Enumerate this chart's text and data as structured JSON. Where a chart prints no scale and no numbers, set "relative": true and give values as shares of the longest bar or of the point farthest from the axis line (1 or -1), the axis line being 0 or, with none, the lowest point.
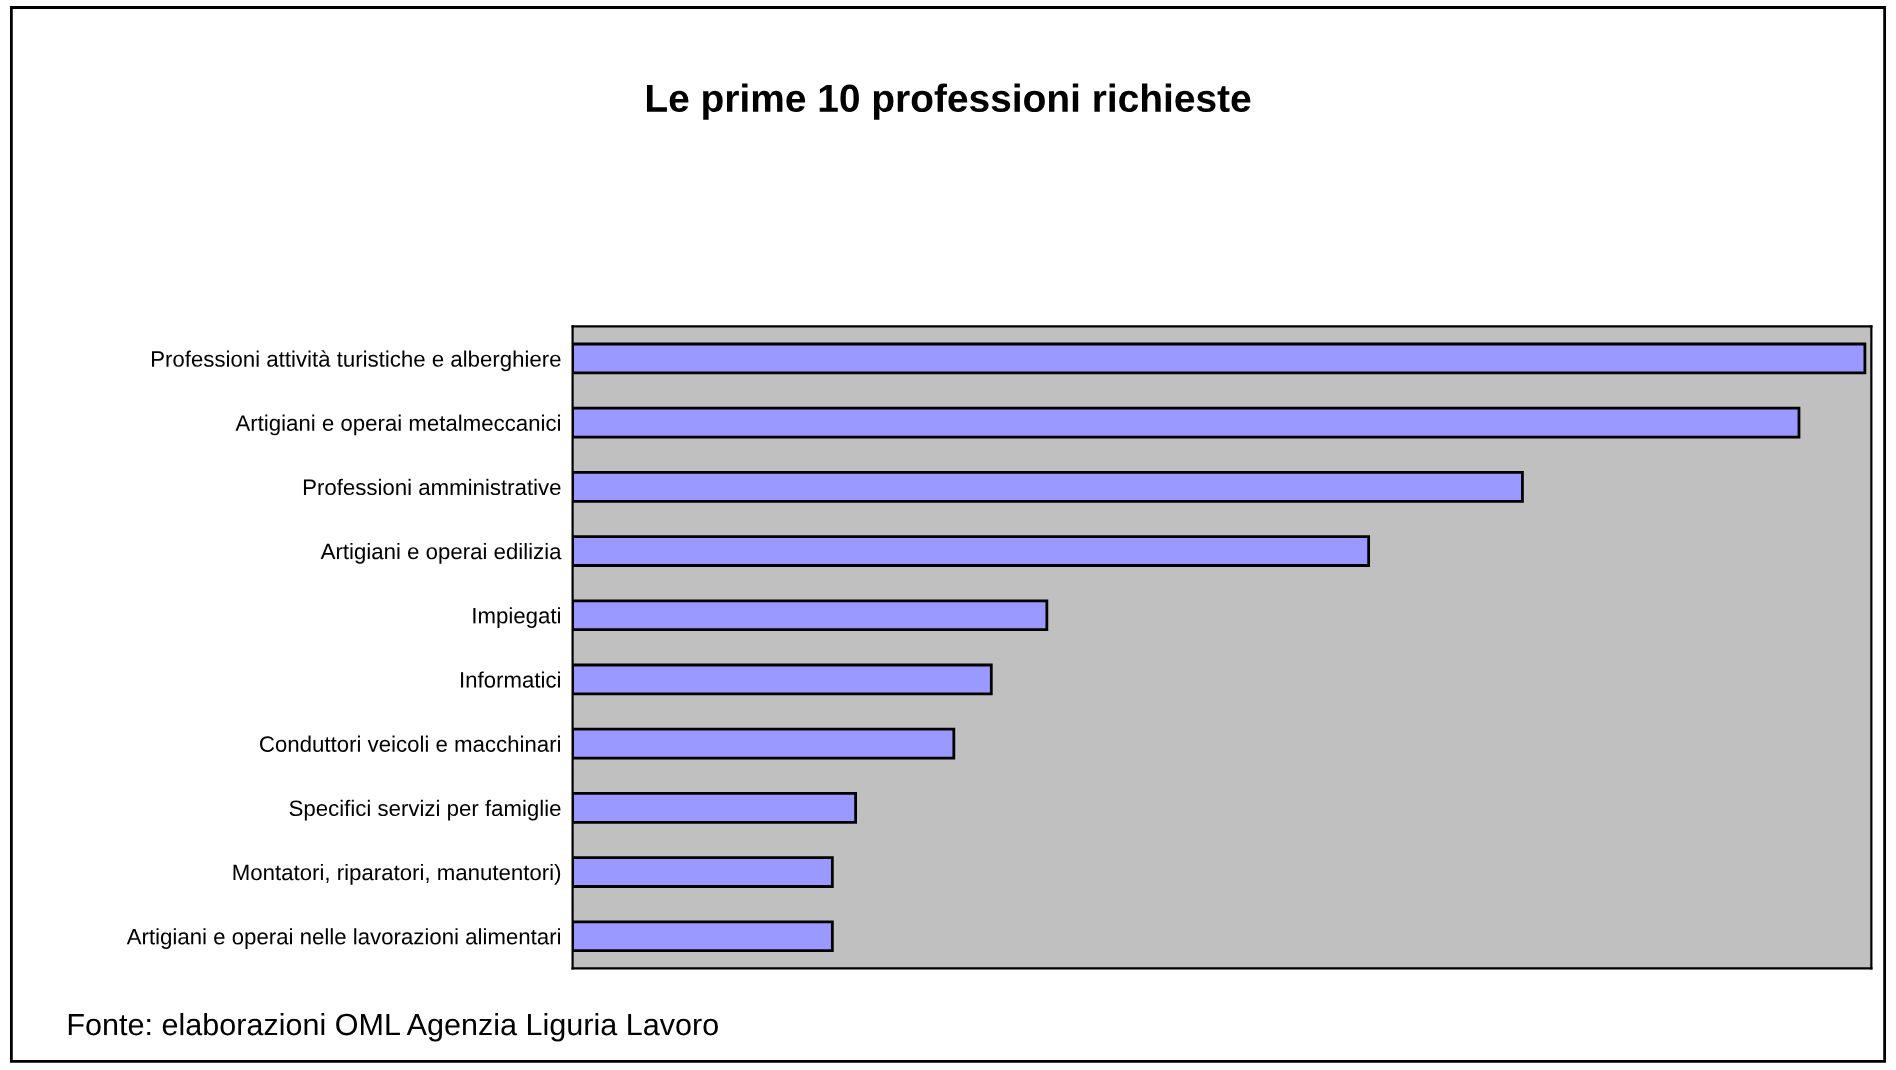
{
  "chart_data": {
    "type": "bar",
    "orientation": "horizontal",
    "relative": true,
    "title": "Le prime 10 professioni richieste",
    "categories": [
      "Professioni attività turistiche e alberghiere",
      "Artigiani e operai metalmeccanici",
      "Professioni amministrative",
      "Artigiani e operai edilizia",
      "Impiegati",
      "Informatici",
      "Conduttori veicoli e macchinari",
      "Specifici servizi per famiglie",
      "Montatori, riparatori, manutentori)",
      "Artigiani e operai nelle lavorazioni alimentari"
    ],
    "values": [
      1,
      0.949,
      0.735,
      0.616,
      0.367,
      0.324,
      0.295,
      0.219,
      0.201,
      0.201
    ],
    "color": "#9999ff",
    "grid": false,
    "legend": false,
    "annotations": [
      "Fonte: elaborazioni OML Agenzia Liguria Lavoro"
    ]
  }
}
